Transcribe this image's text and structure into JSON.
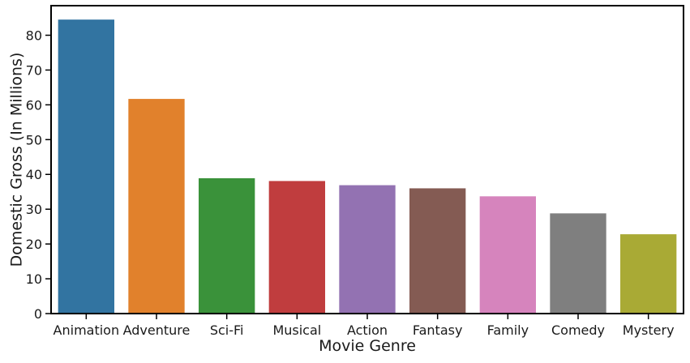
{
  "chart_data": {
    "type": "bar",
    "title": "",
    "xlabel": "Movie Genre",
    "ylabel": "Domestic Gross (In Millions)",
    "categories": [
      "Animation",
      "Adventure",
      "Sci-Fi",
      "Musical",
      "Action",
      "Fantasy",
      "Family",
      "Comedy",
      "Mystery"
    ],
    "values": [
      84.5,
      61.7,
      38.9,
      38.1,
      36.9,
      36.0,
      33.7,
      28.8,
      22.8
    ],
    "colors": [
      "#3274a1",
      "#e1812c",
      "#3a923a",
      "#c03d3e",
      "#9372b2",
      "#845b53",
      "#d684bd",
      "#7f7f7f",
      "#a9aa35"
    ],
    "ylim": [
      0,
      88.5
    ],
    "yticks": [
      0,
      10,
      20,
      30,
      40,
      50,
      60,
      70,
      80
    ],
    "grid": false,
    "legend": "none"
  }
}
